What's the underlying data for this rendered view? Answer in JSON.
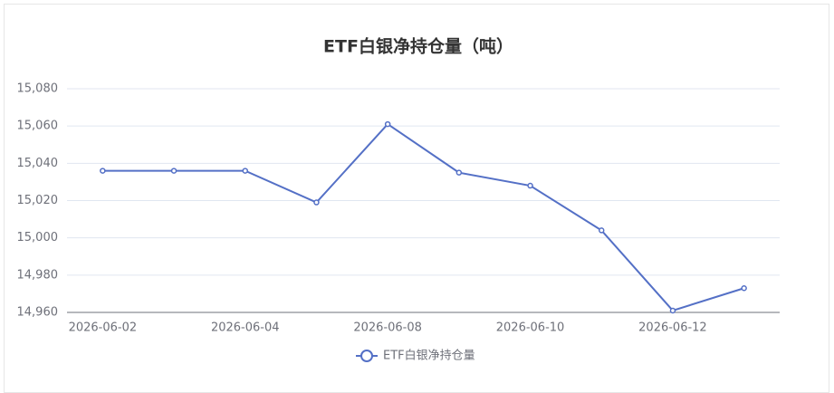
{
  "chart_data": {
    "type": "line",
    "title": "ETF白银净持仓量（吨）",
    "categories": [
      "2026-06-02",
      null,
      "2026-06-04",
      null,
      "2026-06-08",
      null,
      "2026-06-10",
      null,
      "2026-06-12",
      null
    ],
    "series": [
      {
        "name": "ETF白银净持仓量",
        "color": "#5470c6",
        "values": [
          15036,
          15036,
          15036,
          15019,
          15061,
          15035,
          15028,
          15004,
          14961,
          14973
        ]
      }
    ],
    "ylim": [
      14960,
      15080
    ],
    "yticks": [
      {
        "value": 14960,
        "label": "14,960"
      },
      {
        "value": 14980,
        "label": "14,980"
      },
      {
        "value": 15000,
        "label": "15,000"
      },
      {
        "value": 15020,
        "label": "15,020"
      },
      {
        "value": 15040,
        "label": "15,040"
      },
      {
        "value": 15060,
        "label": "15,060"
      },
      {
        "value": 15080,
        "label": "15,080"
      }
    ],
    "grid": true,
    "legend": "bottom"
  }
}
